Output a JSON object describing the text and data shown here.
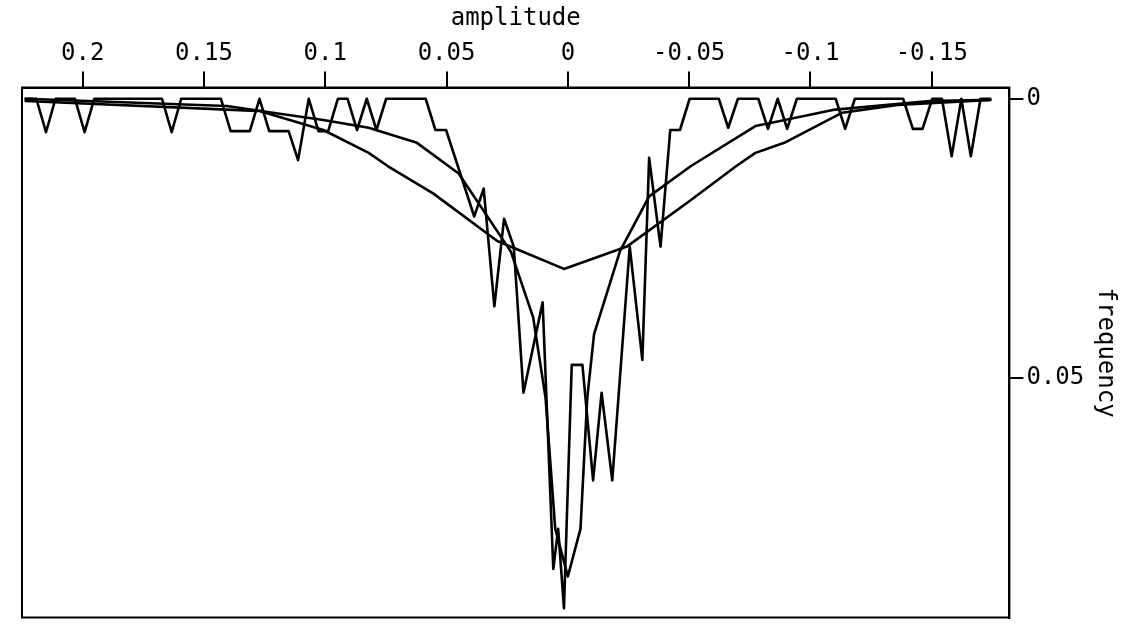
{
  "chart_data": {
    "type": "line",
    "xlabel": "amplitude",
    "ylabel": "frequency",
    "xlim": [
      0.225,
      -0.182
    ],
    "ylim": [
      0.093,
      -0.002
    ],
    "xticks": [
      -0.15,
      -0.1,
      -0.05,
      0,
      0.05,
      0.1,
      0.15,
      0.2
    ],
    "yticks": [
      0,
      0.05
    ],
    "legend": false,
    "marker": "none",
    "line_style": "solid",
    "series": [
      {
        "color": "#000000",
        "x": [
          0.2235,
          0.2191,
          0.2151,
          0.2112,
          0.2032,
          0.1992,
          0.1952,
          0.1673,
          0.1633,
          0.1594,
          0.143,
          0.139,
          0.1311,
          0.1271,
          0.1231,
          0.1151,
          0.1112,
          0.1068,
          0.1028,
          0.0988,
          0.0948,
          0.0908,
          0.0869,
          0.0829,
          0.0789,
          0.0749,
          0.0586,
          0.0546,
          0.0502,
          0.0386,
          0.0347,
          0.0303,
          0.0263,
          0.0223,
          0.0183,
          0.0104,
          0.006,
          0.004,
          0.0016,
          -0.0016,
          -0.006,
          -0.0104,
          -0.0139,
          -0.0183,
          -0.0255,
          -0.0307,
          -0.0335,
          -0.0382,
          -0.0422,
          -0.0462,
          -0.0502,
          -0.0622,
          -0.0661,
          -0.0701,
          -0.0785,
          -0.0825,
          -0.0865,
          -0.0904,
          -0.0944,
          -0.1104,
          -0.1143,
          -0.1183,
          -0.1382,
          -0.1422,
          -0.1462,
          -0.1502,
          -0.1542,
          -0.1582,
          -0.1622,
          -0.1661,
          -0.1701,
          -0.1741
        ],
        "values": [
          0,
          0,
          0.006,
          0,
          0,
          0.006,
          0,
          0,
          0.006,
          0,
          0,
          0.0058,
          0.0058,
          0,
          0.0058,
          0.0058,
          0.011,
          0,
          0.0058,
          0.0058,
          0,
          0,
          0.0056,
          0,
          0.0056,
          0,
          0,
          0.0056,
          0.0056,
          0.0211,
          0.0161,
          0.0372,
          0.0215,
          0.0265,
          0.0527,
          0.0365,
          0.0843,
          0.0771,
          0.0913,
          0.0477,
          0.0477,
          0.0684,
          0.0527,
          0.0684,
          0.0265,
          0.0468,
          0.0106,
          0.0265,
          0.0056,
          0.0056,
          0,
          0,
          0.0052,
          0,
          0,
          0.0054,
          0,
          0.0054,
          0,
          0,
          0.0054,
          0,
          0,
          0.0054,
          0.0054,
          0,
          0,
          0.0103,
          0,
          0.0103,
          0,
          0
        ]
      },
      {
        "color": "#000000",
        "x": [
          0.2235,
          0.1406,
          0.1008,
          0.0821,
          0.0622,
          0.045,
          0.0235,
          0.0143,
          0.0092,
          0.0052,
          0,
          -0.0052,
          -0.008,
          -0.0108,
          -0.0215,
          -0.0335,
          -0.0506,
          -0.0773,
          -0.1092,
          -0.149,
          -0.1741
        ],
        "values": [
          0,
          0.0013,
          0.0038,
          0.0052,
          0.0079,
          0.0134,
          0.0274,
          0.0392,
          0.0536,
          0.0771,
          0.0856,
          0.0771,
          0.0536,
          0.0422,
          0.0273,
          0.0175,
          0.0121,
          0.0049,
          0.002,
          0.0004,
          0.0002
        ]
      },
      {
        "color": "#000000",
        "x": [
          0.2235,
          0.1271,
          0.1008,
          0.0821,
          0.0741,
          0.0554,
          0.0291,
          0.0016,
          -0.0243,
          -0.0506,
          -0.0693,
          -0.0773,
          -0.0892,
          -0.1131,
          -0.1359,
          -0.1741
        ],
        "values": [
          0.0004,
          0.0022,
          0.0056,
          0.0097,
          0.0121,
          0.017,
          0.0255,
          0.0305,
          0.0265,
          0.0182,
          0.0121,
          0.0097,
          0.0079,
          0.0025,
          0.0011,
          0.0002
        ]
      }
    ]
  }
}
